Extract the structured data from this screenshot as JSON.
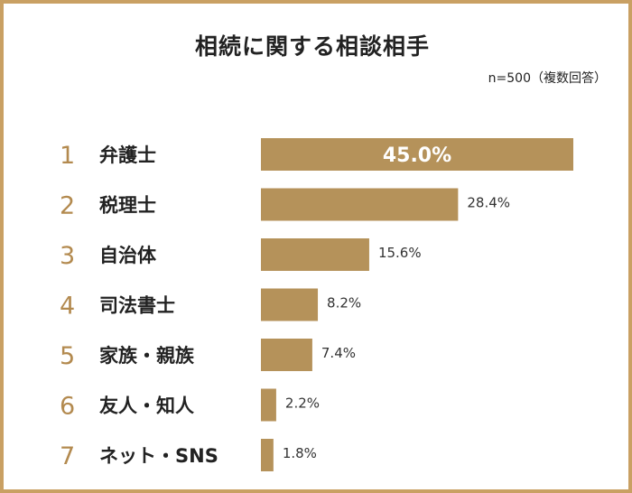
{
  "header": {
    "title": "相続に関する相談相手",
    "note": "n=500（複数回答）"
  },
  "colors": {
    "bar": "#b5925a",
    "rank": "#b38a4f",
    "frame": "#c9a063"
  },
  "chart_data": {
    "type": "bar",
    "orientation": "horizontal",
    "title": "相続に関する相談相手",
    "note": "n=500（複数回答）",
    "ranks": [
      "1",
      "2",
      "3",
      "4",
      "5",
      "6",
      "7"
    ],
    "categories": [
      "弁護士",
      "税理士",
      "自治体",
      "司法書士",
      "家族・親族",
      "友人・知人",
      "ネット・SNS"
    ],
    "values": [
      45.0,
      28.4,
      15.6,
      8.2,
      7.4,
      2.2,
      1.8
    ],
    "value_labels": [
      "45.0%",
      "28.4%",
      "15.6%",
      "8.2%",
      "7.4%",
      "2.2%",
      "1.8%"
    ],
    "xlim": [
      0,
      45
    ],
    "grid": false,
    "legend": "none"
  }
}
